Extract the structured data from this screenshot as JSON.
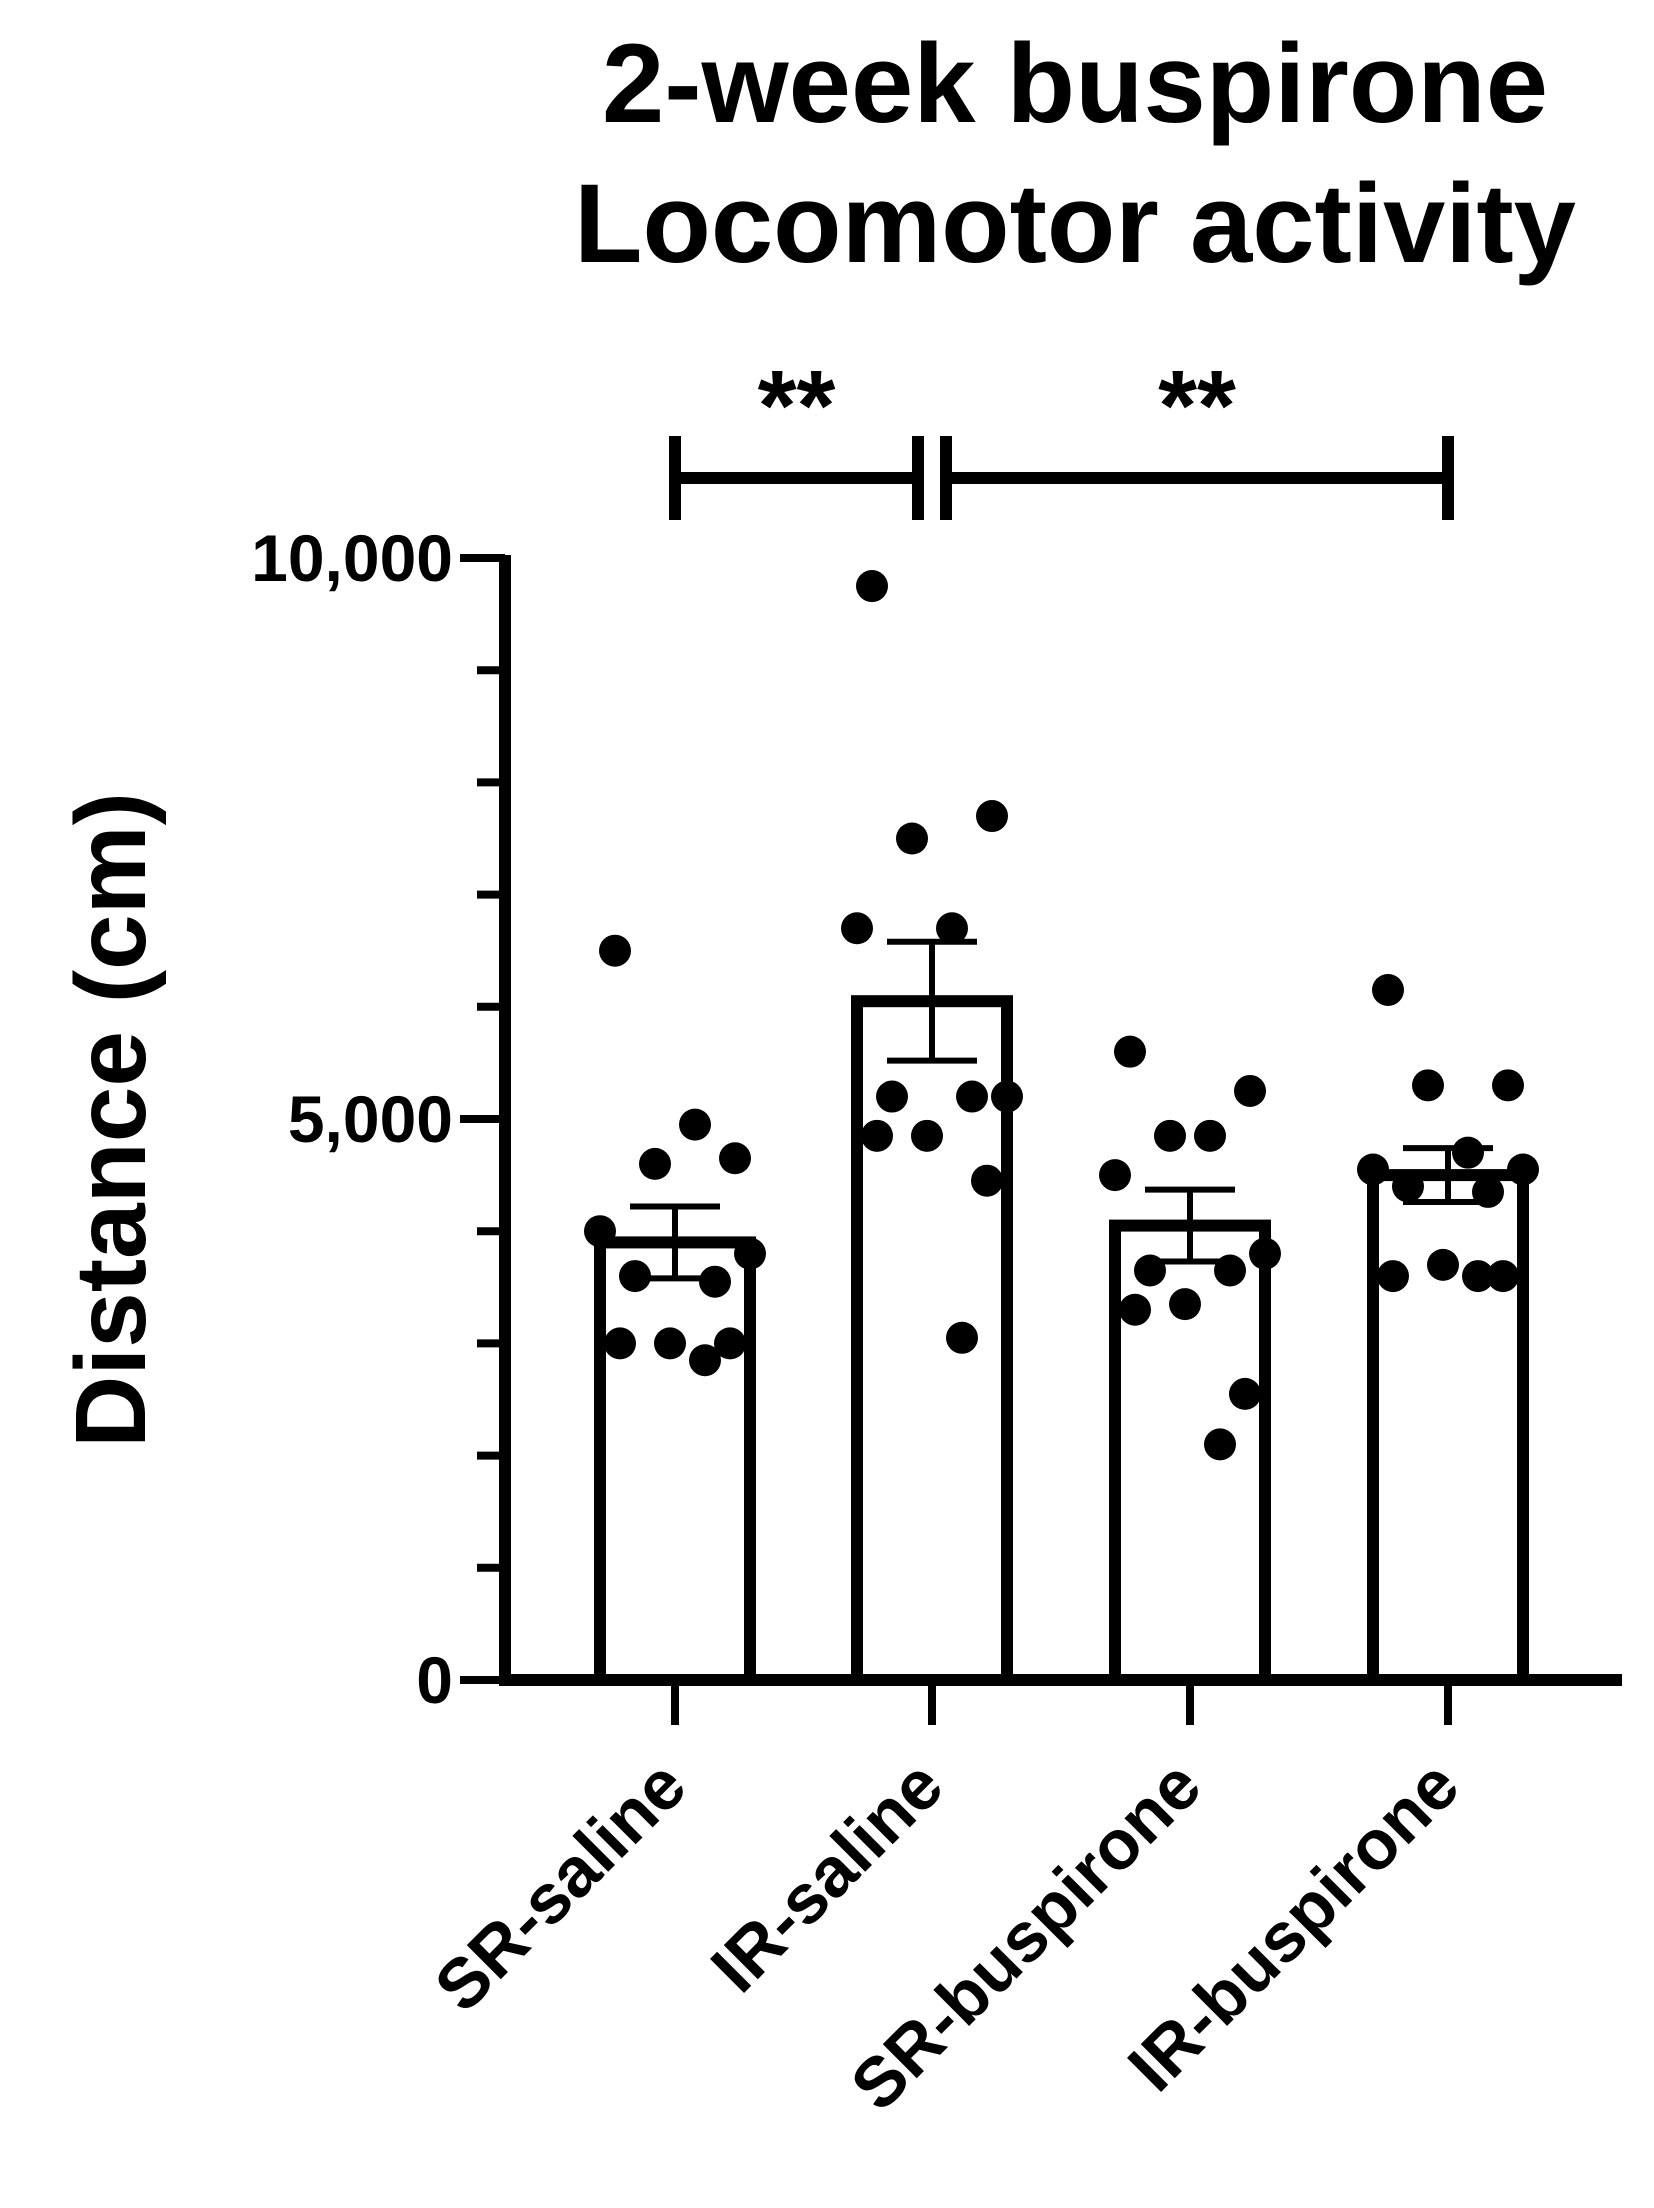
{
  "chart_data": {
    "type": "bar",
    "title": [
      "2-week buspirone",
      "Locomotor activity"
    ],
    "ylabel": "Distance (cm)",
    "xlabel": "",
    "ylim": [
      0,
      10000
    ],
    "yticks": [
      "0",
      "5,000",
      "10,000"
    ],
    "categories": [
      "SR-saline",
      "IR-saline",
      "SR-buspirone",
      "IR-buspirone"
    ],
    "values": [
      3900,
      6050,
      4050,
      4500
    ],
    "sem": [
      320,
      530,
      320,
      240
    ],
    "points": [
      [
        6500,
        4650,
        4600,
        4950,
        4000,
        3800,
        3600,
        3550,
        3000,
        3000,
        3000,
        2850
      ],
      [
        9750,
        7700,
        7500,
        6700,
        6700,
        5200,
        5200,
        5200,
        4850,
        4850,
        4450,
        3050
      ],
      [
        5600,
        5250,
        4850,
        4850,
        4500,
        3800,
        3650,
        3650,
        3350,
        3300,
        2550,
        2100
      ],
      [
        6150,
        5300,
        5300,
        4700,
        4550,
        4550,
        4400,
        4350,
        3700,
        3600,
        3600,
        3600
      ]
    ],
    "significance": [
      {
        "label": "**",
        "from": 0,
        "to": 1
      },
      {
        "label": "**",
        "from": 1,
        "to": 3
      }
    ],
    "grid": false,
    "colors": {
      "bar_fill": "#ffffff",
      "stroke": "#000000",
      "points": "#000000"
    }
  }
}
